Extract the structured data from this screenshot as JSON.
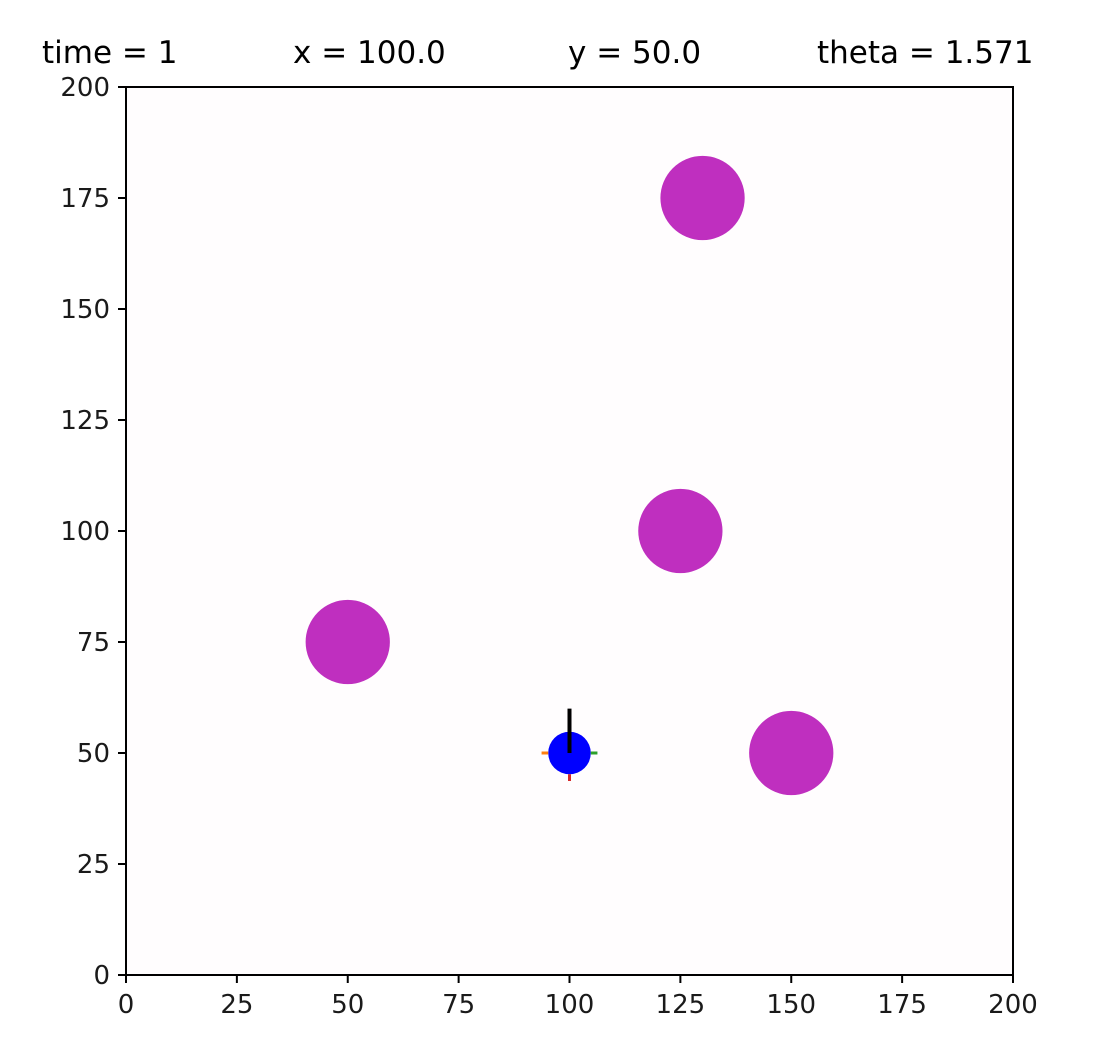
{
  "header": {
    "time_text": "time = 1",
    "x_text": "x = 100.0",
    "y_text": "y = 50.0",
    "theta_text": "theta = 1.571"
  },
  "chart_data": {
    "type": "scatter",
    "title": "",
    "xlabel": "",
    "ylabel": "",
    "xlim": [
      0,
      200
    ],
    "ylim": [
      0,
      200
    ],
    "x_ticks": [
      0,
      25,
      50,
      75,
      100,
      125,
      150,
      175,
      200
    ],
    "y_ticks": [
      0,
      25,
      50,
      75,
      100,
      125,
      150,
      175,
      200
    ],
    "grid": false,
    "legend": "none",
    "background_color": "#fffdfe",
    "obstacles": {
      "color": "#bf2fbf",
      "radius": 9.5,
      "points": [
        {
          "x": 130,
          "y": 175
        },
        {
          "x": 125,
          "y": 100
        },
        {
          "x": 50,
          "y": 75
        },
        {
          "x": 150,
          "y": 50
        }
      ]
    },
    "robot": {
      "x": 100,
      "y": 50,
      "theta": 1.571,
      "radius": 4.8,
      "color": "#0000ff",
      "heading_length": 10,
      "heading_color": "#000000",
      "marker_length": 1.5,
      "marker_colors": [
        "#2ca02c",
        "#ff7f0e",
        "#d62728"
      ]
    }
  }
}
